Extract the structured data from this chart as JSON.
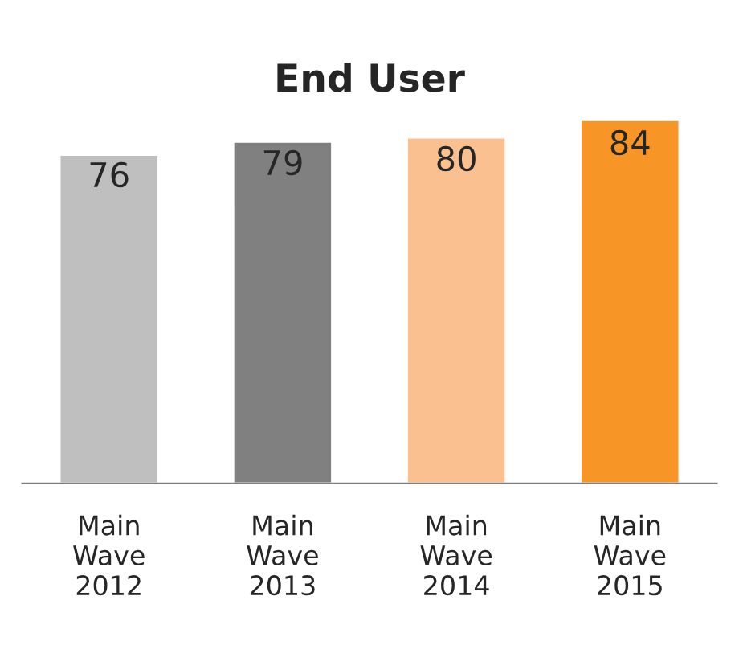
{
  "chart_data": {
    "type": "bar",
    "title": "End User",
    "categories": [
      "Main\nWave\n2012",
      "Main\nWave\n2013",
      "Main\nWave\n2014",
      "Main\nWave\n2015"
    ],
    "values": [
      76,
      79,
      80,
      84
    ],
    "colors": [
      "#bfbfbf",
      "#808080",
      "#fac090",
      "#f79626"
    ],
    "data_labels": true,
    "grid": false,
    "legend": false
  }
}
